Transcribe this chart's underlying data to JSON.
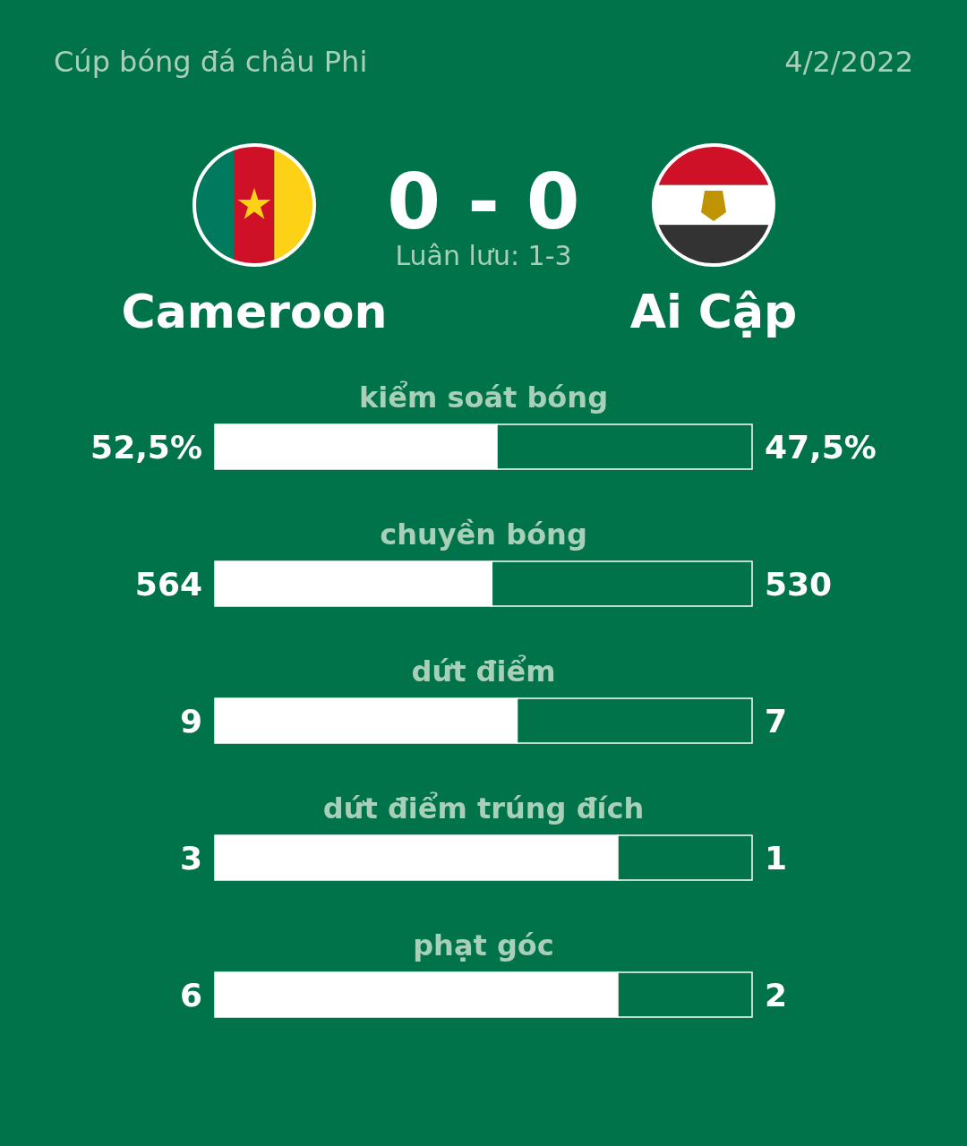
{
  "chart_data": [
    {
      "type": "other",
      "title": "Cúp bóng đá châu Phi",
      "subtitle": "4/2/2022",
      "annotations": [
        "0 - 0",
        "Luân lưu: 1-3",
        "Cameroon",
        "Ai Cập"
      ]
    },
    {
      "type": "bar",
      "title": "kiểm soát bóng",
      "orientation": "horizontal",
      "stacked": true,
      "categories": [
        null
      ],
      "series": [
        {
          "color": "#ffffff",
          "values": [
            52.5
          ],
          "value_labels": [
            "52,5%"
          ]
        },
        {
          "color": "#00734a",
          "values": [
            47.5
          ],
          "value_labels": [
            "47,5%"
          ]
        }
      ]
    },
    {
      "type": "bar",
      "title": "chuyền bóng",
      "orientation": "horizontal",
      "stacked": true,
      "data_labels": true,
      "categories": [
        null
      ],
      "series": [
        {
          "color": "#ffffff",
          "values": [
            564
          ]
        },
        {
          "color": "#00734a",
          "values": [
            530
          ]
        }
      ]
    },
    {
      "type": "bar",
      "title": "dứt điểm",
      "orientation": "horizontal",
      "stacked": true,
      "data_labels": true,
      "categories": [
        null
      ],
      "series": [
        {
          "color": "#ffffff",
          "values": [
            9
          ]
        },
        {
          "color": "#00734a",
          "values": [
            7
          ]
        }
      ]
    },
    {
      "type": "bar",
      "title": "dứt điểm trúng đích",
      "orientation": "horizontal",
      "stacked": true,
      "data_labels": true,
      "categories": [
        null
      ],
      "series": [
        {
          "color": "#ffffff",
          "values": [
            3
          ]
        },
        {
          "color": "#00734a",
          "values": [
            1
          ]
        }
      ]
    },
    {
      "type": "bar",
      "title": "phạt góc",
      "orientation": "horizontal",
      "stacked": true,
      "data_labels": true,
      "categories": [
        null
      ],
      "series": [
        {
          "color": "#ffffff",
          "values": [
            6
          ]
        },
        {
          "color": "#00734a",
          "values": [
            2
          ]
        }
      ]
    }
  ]
}
